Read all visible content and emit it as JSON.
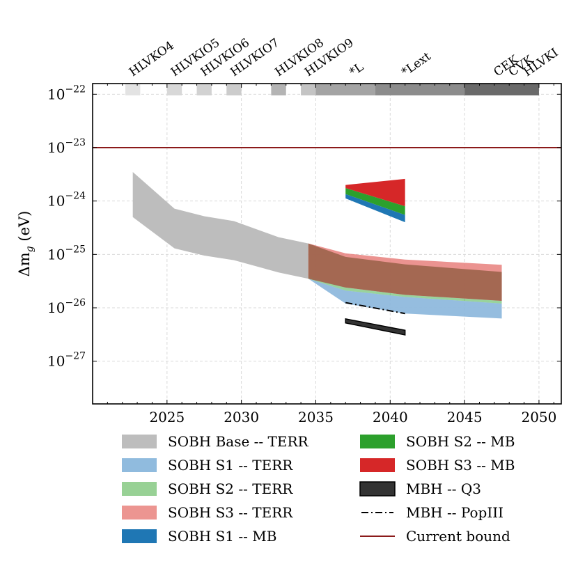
{
  "chart_data": {
    "type": "area",
    "title": "",
    "xlabel": "",
    "ylabel": "Δm_g (eV)",
    "ylabel_main": "Δm",
    "ylabel_sub": "g",
    "ylabel_unit": " (eV)",
    "yscale": "log",
    "xlim": [
      2020,
      2051.5
    ],
    "ylim_exponent": [
      -27.8,
      -21.8
    ],
    "xticks": [
      2025,
      2030,
      2035,
      2040,
      2045,
      2050
    ],
    "xtick_labels": [
      "2025",
      "2030",
      "2035",
      "2040",
      "2045",
      "2050"
    ],
    "yticks": [
      {
        "exp": -22,
        "base": "10",
        "power": "−22"
      },
      {
        "exp": -23,
        "base": "10",
        "power": "−23"
      },
      {
        "exp": -24,
        "base": "10",
        "power": "−24"
      },
      {
        "exp": -25,
        "base": "10",
        "power": "−25"
      },
      {
        "exp": -26,
        "base": "10",
        "power": "−26"
      },
      {
        "exp": -27,
        "base": "10",
        "power": "−27"
      }
    ],
    "grid": true,
    "current_bound": {
      "name": "Current bound",
      "value": 1e-23,
      "color": "#8b1a1a"
    },
    "detector_networks": {
      "labels": [
        {
          "text": "HLVKO4",
          "year": 2022.7
        },
        {
          "text": "HLVKIO5",
          "year": 2025.5
        },
        {
          "text": "HLVKIO6",
          "year": 2027.5
        },
        {
          "text": "HLVKIO7",
          "year": 2029.5
        },
        {
          "text": "HLVKIO8",
          "year": 2032.5
        },
        {
          "text": "HLVKIO9",
          "year": 2034.5
        },
        {
          "text": "*L",
          "year": 2037.5
        },
        {
          "text": "*Lext",
          "year": 2041
        },
        {
          "text": "CEK",
          "year": 2047.2
        },
        {
          "text": "CVK",
          "year": 2048.2
        },
        {
          "text": "HLVKI",
          "year": 2049.2
        }
      ],
      "segments": [
        {
          "start": 2022.2,
          "end": 2023.2,
          "color": "#e3e3e3"
        },
        {
          "start": 2025.0,
          "end": 2026.0,
          "color": "#d8d8d8"
        },
        {
          "start": 2027.0,
          "end": 2028.0,
          "color": "#d2d2d2"
        },
        {
          "start": 2029.0,
          "end": 2030.0,
          "color": "#cccccc"
        },
        {
          "start": 2032.0,
          "end": 2033.0,
          "color": "#b4b4b4"
        },
        {
          "start": 2034.0,
          "end": 2035.0,
          "color": "#c4c4c4"
        },
        {
          "start": 2035.0,
          "end": 2039.0,
          "color": "#a4a4a4"
        },
        {
          "start": 2039.0,
          "end": 2045.0,
          "color": "#8c8c8c"
        },
        {
          "start": 2045.0,
          "end": 2050.0,
          "color": "#6a6a6a"
        }
      ]
    },
    "series": [
      {
        "name": "SOBH Base -- TERR",
        "color": "#bdbdbd",
        "opacity": 1,
        "x": [
          2022.7,
          2025.5,
          2027.5,
          2029.5,
          2032.5,
          2034.5
        ],
        "upper": [
          3.5e-24,
          7.2e-25,
          5.2e-25,
          4.2e-25,
          2.1e-25,
          1.6e-25
        ],
        "lower": [
          5e-25,
          1.3e-25,
          9.5e-26,
          7.8e-26,
          4.6e-26,
          3.5e-26
        ]
      },
      {
        "name": "SOBH S1 -- TERR",
        "color": "#89b6db",
        "opacity": 0.9,
        "x": [
          2034.5,
          2037,
          2041,
          2047.5
        ],
        "upper": [
          3.5e-26,
          2.1e-26,
          1.6e-26,
          1.2e-26
        ],
        "lower": [
          3.5e-26,
          1.2e-26,
          7.8e-27,
          6.3e-27
        ]
      },
      {
        "name": "SOBH S2 -- TERR",
        "color": "#34a73a",
        "opacity": 0.5,
        "x": [
          2034.5,
          2037,
          2041,
          2047.5
        ],
        "upper": [
          3.9e-26,
          2.4e-26,
          1.75e-26,
          1.35e-26
        ],
        "lower": [
          3.5e-26,
          2.1e-26,
          1.6e-26,
          1.2e-26
        ]
      },
      {
        "name": "SOBH S3 -- TERR",
        "color": "#e8807c",
        "opacity": 0.85,
        "x": [
          2034.5,
          2037,
          2041,
          2047.5
        ],
        "upper": [
          1.6e-25,
          1.05e-25,
          8e-26,
          6.4e-26
        ],
        "lower": [
          3.9e-26,
          2.4e-26,
          1.75e-26,
          1.35e-26
        ]
      },
      {
        "name": "SOBH S3 -- TERR (overlap)",
        "color": "#a0654f",
        "opacity": 0.95,
        "legend": false,
        "x": [
          2034.5,
          2037,
          2041,
          2047.5
        ],
        "upper": [
          1.6e-25,
          9e-26,
          6.5e-26,
          4.7e-26
        ],
        "lower": [
          3.5e-26,
          2.4e-26,
          1.75e-26,
          1.35e-26
        ]
      },
      {
        "name": "SOBH S1 -- MB",
        "color": "#1f77b4",
        "opacity": 1,
        "x": [
          2037,
          2041
        ],
        "upper": [
          1.35e-24,
          5.5e-25
        ],
        "lower": [
          1.12e-24,
          4e-25
        ]
      },
      {
        "name": "SOBH S2 -- MB",
        "color": "#2ca02c",
        "opacity": 1,
        "x": [
          2037,
          2041
        ],
        "upper": [
          1.75e-24,
          8e-25
        ],
        "lower": [
          1.35e-24,
          5.5e-25
        ]
      },
      {
        "name": "SOBH S3 -- MB",
        "color": "#d62728",
        "opacity": 1,
        "x": [
          2037,
          2041
        ],
        "upper": [
          2e-24,
          2.6e-24
        ],
        "lower": [
          1.75e-24,
          8e-25
        ]
      },
      {
        "name": "MBH -- Q3",
        "color": "#333333",
        "opacity": 1,
        "edge": "#000000",
        "x": [
          2037,
          2041
        ],
        "upper": [
          6.2e-27,
          3.8e-27
        ],
        "lower": [
          5.2e-27,
          3.1e-27
        ]
      },
      {
        "name": "MBH -- PopIII",
        "color": "#000000",
        "style": "dashdot",
        "x": [
          2037,
          2041
        ],
        "values": [
          1.25e-26,
          7.8e-27
        ]
      }
    ],
    "legend": {
      "placement": "bottom",
      "columns": [
        [
          {
            "label": "SOBH Base -- TERR",
            "color": "#bdbdbd",
            "kind": "patch"
          },
          {
            "label": "SOBH S1 -- TERR",
            "color": "#90bbde",
            "kind": "patch"
          },
          {
            "label": "SOBH S2 -- TERR",
            "color": "#98d195",
            "kind": "patch"
          },
          {
            "label": "SOBH S3 -- TERR",
            "color": "#ec9591",
            "kind": "patch"
          },
          {
            "label": "SOBH S1 -- MB",
            "color": "#1f77b4",
            "kind": "patch"
          }
        ],
        [
          {
            "label": "SOBH S2 -- MB",
            "color": "#2ca02c",
            "kind": "patch"
          },
          {
            "label": "SOBH S3 -- MB",
            "color": "#d62728",
            "kind": "patch"
          },
          {
            "label": "MBH -- Q3",
            "color": "#333333",
            "kind": "patch-edge"
          },
          {
            "label": "MBH -- PopIII",
            "color": "#000000",
            "kind": "dashdot"
          },
          {
            "label": "Current bound",
            "color": "#8b1a1a",
            "kind": "line"
          }
        ]
      ]
    }
  }
}
